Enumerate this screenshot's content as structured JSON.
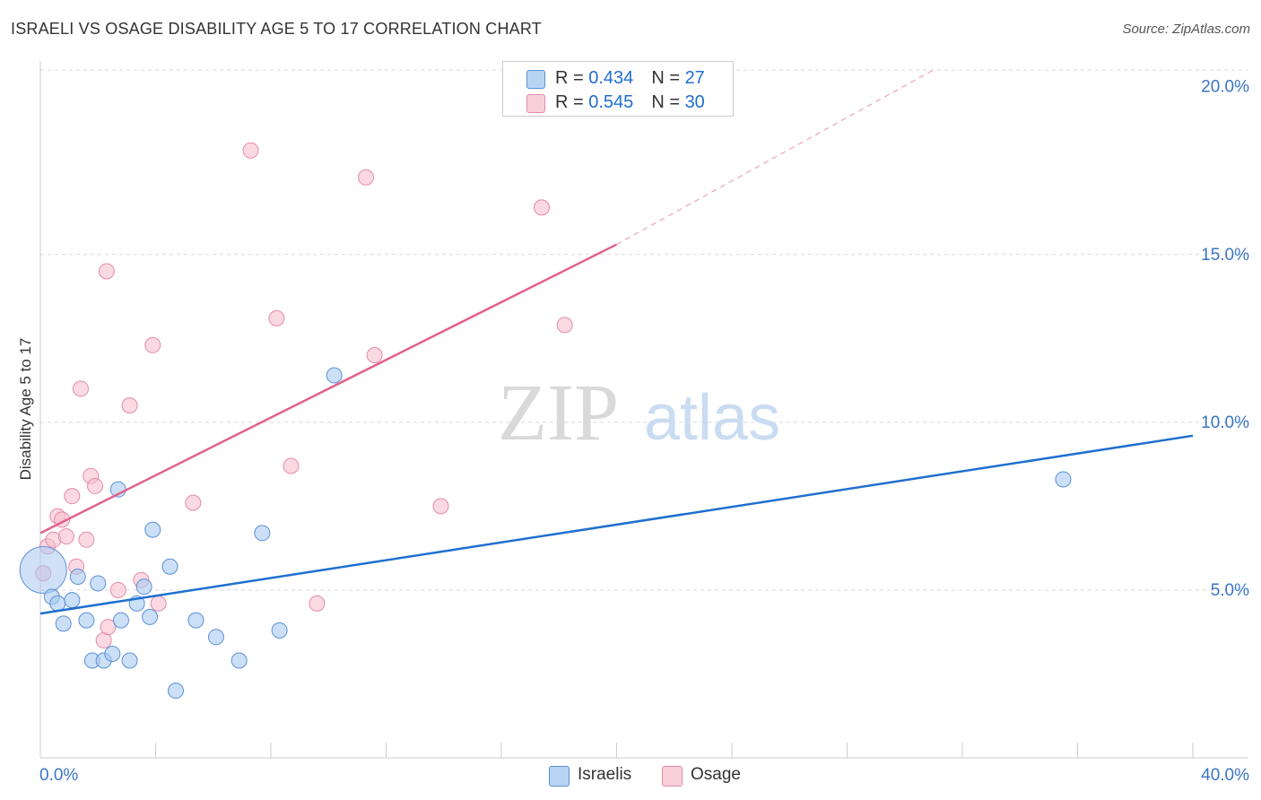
{
  "title": "ISRAELI VS OSAGE DISABILITY AGE 5 TO 17 CORRELATION CHART",
  "source": "Source: ZipAtlas.com",
  "watermark": {
    "zip": "ZIP",
    "atlas": "atlas"
  },
  "colors": {
    "israelis_fill": "#a9c9f0",
    "israelis_stroke": "#5b90d6",
    "israelis_line": "#1f6fcf",
    "osage_fill": "#f6bfd0",
    "osage_stroke": "#e68aa7",
    "osage_line": "#e0628c",
    "axis_label": "#3a75c4",
    "grid": "#d9d9d9"
  },
  "legend": {
    "israelis": {
      "r_label": "R = ",
      "r_value": "0.434",
      "n_label": "N = ",
      "n_value": "27"
    },
    "osage": {
      "r_label": "R = ",
      "r_value": "0.545",
      "n_label": "N = ",
      "n_value": "30"
    }
  },
  "bottom_legend": {
    "israelis": "Israelis",
    "osage": "Osage"
  },
  "chart_data": {
    "type": "scatter",
    "title": "ISRAELI VS OSAGE DISABILITY AGE 5 TO 17 CORRELATION CHART",
    "xlabel": "",
    "ylabel": "Disability Age 5 to 17",
    "xlim": [
      0,
      40
    ],
    "ylim": [
      0,
      20.5
    ],
    "x_tick_labels": [
      {
        "value": 0,
        "label": "0.0%"
      },
      {
        "value": 40,
        "label": "40.0%"
      }
    ],
    "y_tick_labels": [
      {
        "value": 5,
        "label": "5.0%"
      },
      {
        "value": 10,
        "label": "10.0%"
      },
      {
        "value": 15,
        "label": "15.0%"
      },
      {
        "value": 20,
        "label": "20.0%"
      }
    ],
    "x_minor_ticks": [
      0,
      4,
      8,
      12,
      16,
      20,
      24,
      28,
      32,
      36,
      40
    ],
    "y_gridlines": [
      5,
      10,
      15,
      20.5
    ],
    "series": [
      {
        "name": "Israelis",
        "points": [
          {
            "x": 0.1,
            "y": 5.6,
            "big": true
          },
          {
            "x": 0.4,
            "y": 4.8
          },
          {
            "x": 0.6,
            "y": 4.6
          },
          {
            "x": 0.8,
            "y": 4.0
          },
          {
            "x": 1.1,
            "y": 4.7
          },
          {
            "x": 1.3,
            "y": 5.4
          },
          {
            "x": 1.6,
            "y": 4.1
          },
          {
            "x": 1.8,
            "y": 2.9
          },
          {
            "x": 2.0,
            "y": 5.2
          },
          {
            "x": 2.2,
            "y": 2.9
          },
          {
            "x": 2.5,
            "y": 3.1
          },
          {
            "x": 2.7,
            "y": 8.0
          },
          {
            "x": 2.8,
            "y": 4.1
          },
          {
            "x": 3.1,
            "y": 2.9
          },
          {
            "x": 3.35,
            "y": 4.6
          },
          {
            "x": 3.6,
            "y": 5.1
          },
          {
            "x": 3.8,
            "y": 4.2
          },
          {
            "x": 3.9,
            "y": 6.8
          },
          {
            "x": 4.5,
            "y": 5.7
          },
          {
            "x": 4.7,
            "y": 2.0
          },
          {
            "x": 5.4,
            "y": 4.1
          },
          {
            "x": 6.1,
            "y": 3.6
          },
          {
            "x": 6.9,
            "y": 2.9
          },
          {
            "x": 7.7,
            "y": 6.7
          },
          {
            "x": 8.3,
            "y": 3.8
          },
          {
            "x": 10.2,
            "y": 11.4
          },
          {
            "x": 35.5,
            "y": 8.3
          }
        ],
        "trend": {
          "x1": 0,
          "y1": 4.3,
          "x2": 40,
          "y2": 9.6,
          "dashed_to": null
        }
      },
      {
        "name": "Osage",
        "points": [
          {
            "x": 0.1,
            "y": 5.5
          },
          {
            "x": 0.25,
            "y": 6.3
          },
          {
            "x": 0.45,
            "y": 6.5
          },
          {
            "x": 0.6,
            "y": 7.2
          },
          {
            "x": 0.75,
            "y": 7.1
          },
          {
            "x": 0.9,
            "y": 6.6
          },
          {
            "x": 1.1,
            "y": 7.8
          },
          {
            "x": 1.25,
            "y": 5.7
          },
          {
            "x": 1.4,
            "y": 11.0
          },
          {
            "x": 1.6,
            "y": 6.5
          },
          {
            "x": 1.75,
            "y": 8.4
          },
          {
            "x": 1.9,
            "y": 8.1
          },
          {
            "x": 2.2,
            "y": 3.5
          },
          {
            "x": 2.3,
            "y": 14.5
          },
          {
            "x": 2.35,
            "y": 3.9
          },
          {
            "x": 2.7,
            "y": 5.0
          },
          {
            "x": 3.1,
            "y": 10.5
          },
          {
            "x": 3.5,
            "y": 5.3
          },
          {
            "x": 3.9,
            "y": 12.3
          },
          {
            "x": 4.1,
            "y": 4.6
          },
          {
            "x": 5.3,
            "y": 7.6
          },
          {
            "x": 7.3,
            "y": 18.1
          },
          {
            "x": 8.2,
            "y": 13.1
          },
          {
            "x": 8.7,
            "y": 8.7
          },
          {
            "x": 9.6,
            "y": 4.6
          },
          {
            "x": 11.3,
            "y": 17.3
          },
          {
            "x": 11.6,
            "y": 12.0
          },
          {
            "x": 13.9,
            "y": 7.5
          },
          {
            "x": 17.4,
            "y": 16.4
          },
          {
            "x": 18.2,
            "y": 12.9
          }
        ],
        "trend": {
          "x1": 0,
          "y1": 6.7,
          "x2": 20,
          "y2": 15.3,
          "dashed_to": {
            "x": 31,
            "y": 20.5
          }
        }
      }
    ]
  }
}
